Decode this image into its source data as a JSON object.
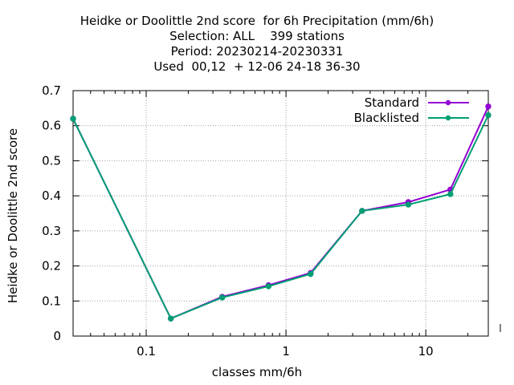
{
  "chart_data": {
    "type": "line",
    "title_lines": [
      "Heidke or Doolittle 2nd score  for 6h Precipitation (mm/6h)",
      "Selection: ALL    399 stations",
      "Period: 20230214-20230331",
      "Used  00,12  + 12-06 24-18 36-30"
    ],
    "xlabel": "classes mm/6h",
    "ylabel": "Heidke or Doolittle 2nd score",
    "x_scale": "log",
    "xlim": [
      0.03,
      28
    ],
    "ylim": [
      0,
      0.7
    ],
    "x_ticks": [
      0.1,
      1,
      10
    ],
    "x_tick_labels": [
      "0.1",
      "1",
      "10"
    ],
    "y_ticks": [
      0,
      0.1,
      0.2,
      0.3,
      0.4,
      0.5,
      0.6,
      0.7
    ],
    "y_tick_labels": [
      "0",
      "0.1",
      "0.2",
      "0.3",
      "0.4",
      "0.5",
      "0.6",
      "0.7"
    ],
    "grid": true,
    "legend_position": "top-right",
    "x": [
      0.03,
      0.15,
      0.35,
      0.75,
      1.5,
      3.5,
      7.5,
      15,
      28
    ],
    "series": [
      {
        "name": "Standard",
        "color": "#9400d3",
        "values": [
          0.62,
          0.05,
          0.112,
          0.145,
          0.18,
          0.357,
          0.382,
          0.418,
          0.655
        ]
      },
      {
        "name": "Blacklisted",
        "color": "#009e73",
        "values": [
          0.62,
          0.05,
          0.11,
          0.142,
          0.177,
          0.357,
          0.375,
          0.405,
          0.63
        ]
      }
    ]
  }
}
